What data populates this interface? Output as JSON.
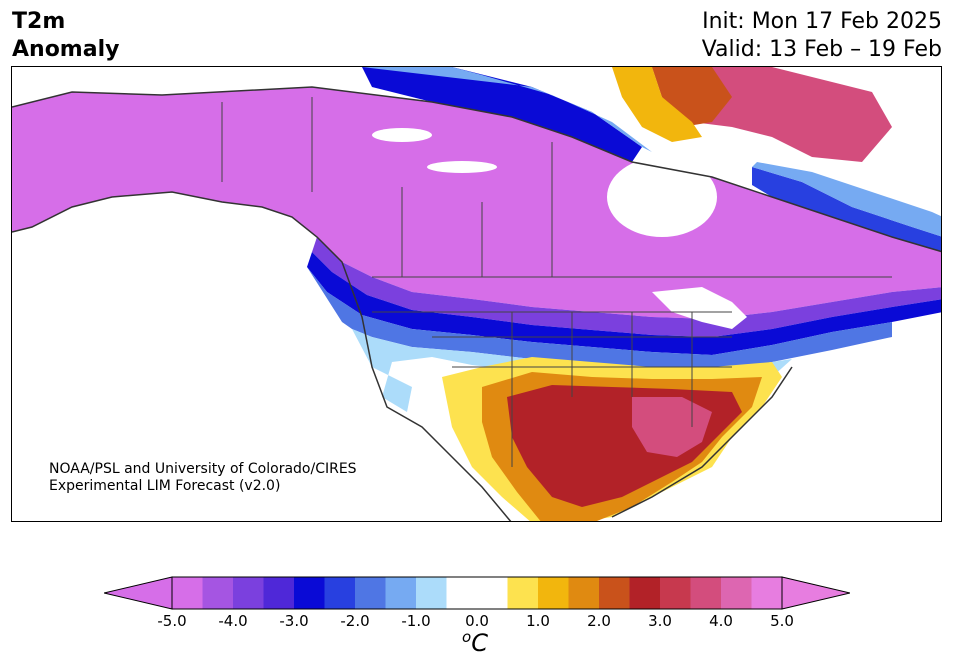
{
  "header": {
    "title_line1": "T2m",
    "title_line2": "Anomaly",
    "init": "Init: Mon 17 Feb 2025",
    "valid": "Valid: 13 Feb – 19 Feb"
  },
  "credit": {
    "line1": "NOAA/PSL and University of Colorado/CIRES",
    "line2": "Experimental LIM Forecast (v2.0)"
  },
  "colorbar": {
    "levels": [
      -5.0,
      -4.5,
      -4.0,
      -3.5,
      -3.0,
      -2.5,
      -2.0,
      -1.5,
      -1.0,
      -0.5,
      0.5,
      1.0,
      1.5,
      2.0,
      2.5,
      3.0,
      3.5,
      4.0,
      4.5,
      5.0
    ],
    "colors": [
      "#d66ee8",
      "#a555e2",
      "#7b40de",
      "#4f28d8",
      "#0a0ad6",
      "#2840e0",
      "#4f76e4",
      "#76aaf2",
      "#acdcfa",
      "#ffffff",
      "#ffffff",
      "#fde24f",
      "#f2b60d",
      "#e08a11",
      "#c9521b",
      "#b22228",
      "#c7394e",
      "#d34d7d",
      "#dd66b1",
      "#e77de0"
    ],
    "extend_low_color": "#d66ee8",
    "extend_high_color": "#e77de0",
    "tick_labels": [
      "-5.0",
      "-4.0",
      "-3.0",
      "-2.0",
      "-1.0",
      "0.0",
      "1.0",
      "2.0",
      "3.0",
      "4.0",
      "5.0"
    ],
    "unit_base": "C",
    "unit_sup": "o"
  },
  "palette": {
    "strong_cold": "#d66ee8",
    "cold_core": "#0a0ad6",
    "warm_core": "#b22228",
    "strong_warm": "#c7394e"
  }
}
